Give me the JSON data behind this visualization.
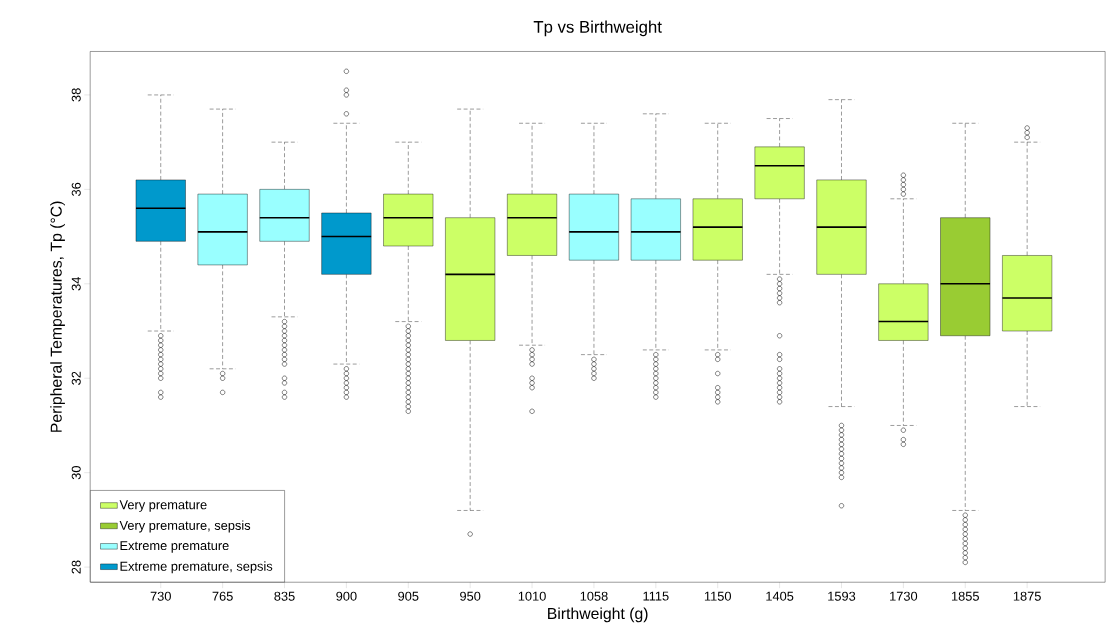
{
  "chart_data": {
    "type": "box",
    "title": "Tp vs Birthweight",
    "xlabel": "Birthweight (g)",
    "ylabel": "Peripheral Temperatures, Tp (°C)",
    "categories": [
      "730",
      "765",
      "835",
      "900",
      "905",
      "950",
      "1010",
      "1058",
      "1115",
      "1150",
      "1405",
      "1593",
      "1730",
      "1855",
      "1875"
    ],
    "ylim": [
      27.68,
      38.92
    ],
    "yticks": [
      28,
      30,
      32,
      34,
      36,
      38
    ],
    "legend": "bottom left",
    "grid": false,
    "marker": "circle",
    "series": [
      {
        "name": "Very premature",
        "color": "#ccff66",
        "boxes": [
          null,
          null,
          null,
          null,
          {
            "low": 33.2,
            "q1": 34.8,
            "median": 35.4,
            "q3": 35.9,
            "high": 37.0,
            "outliers": [
              33.1,
              33.0,
              32.9,
              32.8,
              32.7,
              32.6,
              32.5,
              32.4,
              32.3,
              32.2,
              32.1,
              32.0,
              31.9,
              31.8,
              31.7,
              31.6,
              31.5,
              31.4,
              31.3
            ]
          },
          {
            "low": 29.2,
            "q1": 32.8,
            "median": 34.2,
            "q3": 35.4,
            "high": 37.7,
            "outliers": [
              28.7
            ]
          },
          {
            "low": 32.7,
            "q1": 34.6,
            "median": 35.4,
            "q3": 35.9,
            "high": 37.4,
            "outliers": [
              32.6,
              32.5,
              32.4,
              32.3,
              32.0,
              31.9,
              31.8,
              31.3
            ]
          },
          null,
          null,
          {
            "low": 32.6,
            "q1": 34.5,
            "median": 35.2,
            "q3": 35.8,
            "high": 37.4,
            "outliers": [
              32.5,
              32.4,
              32.1,
              31.8,
              31.7,
              31.6,
              31.5
            ]
          },
          {
            "low": 34.2,
            "q1": 35.8,
            "median": 36.5,
            "q3": 36.9,
            "high": 37.5,
            "outliers": [
              34.1,
              34.0,
              33.9,
              33.8,
              33.7,
              33.6,
              32.9,
              32.5,
              32.4,
              32.2,
              32.1,
              32.0,
              31.9,
              31.8,
              31.7,
              31.6,
              31.5
            ]
          },
          {
            "low": 31.4,
            "q1": 34.2,
            "median": 35.2,
            "q3": 36.2,
            "high": 37.9,
            "outliers": [
              31.0,
              30.9,
              30.8,
              30.7,
              30.6,
              30.5,
              30.4,
              30.3,
              30.2,
              30.1,
              30.0,
              29.9,
              29.3
            ]
          },
          {
            "low": 31.0,
            "q1": 32.8,
            "median": 33.2,
            "q3": 34.0,
            "high": 35.8,
            "outliers": [
              35.9,
              36.0,
              36.1,
              36.2,
              36.3,
              30.9,
              30.7,
              30.6
            ]
          },
          null,
          {
            "low": 31.4,
            "q1": 33.0,
            "median": 33.7,
            "q3": 34.6,
            "high": 37.0,
            "outliers": [
              37.1,
              37.2,
              37.3
            ]
          }
        ]
      },
      {
        "name": "Very premature, sepsis",
        "color": "#99cc33",
        "boxes": [
          null,
          null,
          null,
          null,
          null,
          null,
          null,
          null,
          null,
          null,
          null,
          null,
          null,
          {
            "low": 29.2,
            "q1": 32.9,
            "median": 34.0,
            "q3": 35.4,
            "high": 37.4,
            "outliers": [
              29.1,
              29.0,
              28.9,
              28.8,
              28.7,
              28.6,
              28.5,
              28.4,
              28.3,
              28.2,
              28.1
            ]
          },
          null
        ]
      },
      {
        "name": "Extreme premature",
        "color": "#99ffff",
        "boxes": [
          null,
          {
            "low": 32.2,
            "q1": 34.4,
            "median": 35.1,
            "q3": 35.9,
            "high": 37.7,
            "outliers": [
              32.1,
              32.0,
              31.7
            ]
          },
          {
            "low": 33.3,
            "q1": 34.9,
            "median": 35.4,
            "q3": 36.0,
            "high": 37.0,
            "outliers": [
              33.2,
              33.1,
              33.0,
              32.9,
              32.8,
              32.7,
              32.6,
              32.5,
              32.4,
              32.3,
              32.0,
              31.9,
              31.7,
              31.6
            ]
          },
          null,
          null,
          null,
          null,
          {
            "low": 32.5,
            "q1": 34.5,
            "median": 35.1,
            "q3": 35.9,
            "high": 37.4,
            "outliers": [
              32.4,
              32.3,
              32.2,
              32.1,
              32.0
            ]
          },
          {
            "low": 32.6,
            "q1": 34.5,
            "median": 35.1,
            "q3": 35.8,
            "high": 37.6,
            "outliers": [
              32.5,
              32.4,
              32.3,
              32.2,
              32.1,
              32.0,
              31.9,
              31.8,
              31.7,
              31.6
            ]
          },
          null,
          null,
          null,
          null,
          null,
          null
        ]
      },
      {
        "name": "Extreme premature, sepsis",
        "color": "#0099cc",
        "boxes": [
          {
            "low": 33.0,
            "q1": 34.9,
            "median": 35.6,
            "q3": 36.2,
            "high": 38.0,
            "outliers": [
              32.9,
              32.8,
              32.7,
              32.6,
              32.5,
              32.4,
              32.3,
              32.2,
              32.1,
              32.0,
              31.7,
              31.6
            ]
          },
          null,
          null,
          {
            "low": 32.3,
            "q1": 34.2,
            "median": 35.0,
            "q3": 35.5,
            "high": 37.4,
            "outliers": [
              37.6,
              38.0,
              38.1,
              38.5,
              32.2,
              32.1,
              32.0,
              31.9,
              31.8,
              31.7,
              31.6
            ]
          },
          null,
          null,
          null,
          null,
          null,
          null,
          null,
          null,
          null,
          null,
          null
        ]
      }
    ]
  }
}
